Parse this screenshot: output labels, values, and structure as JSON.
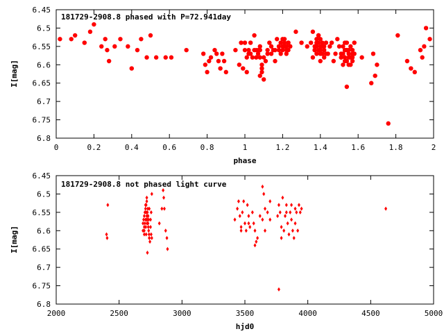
{
  "chart_data": [
    {
      "type": "scatter",
      "title": "181729-2908.8 phased with P=72.941day",
      "xlabel": "phase",
      "ylabel": "I[mag]",
      "xlim": [
        0,
        2
      ],
      "ylim": [
        6.45,
        6.8
      ],
      "y_inverted": true,
      "xticks": [
        0,
        0.2,
        0.4,
        0.6,
        0.8,
        1,
        1.2,
        1.4,
        1.6,
        1.8,
        2
      ],
      "xtick_labels": [
        "0",
        "0.2",
        "0.4",
        "0.6",
        "0.8",
        "1",
        "1.2",
        "1.4",
        "1.6",
        "1.8",
        "2"
      ],
      "yticks": [
        6.45,
        6.5,
        6.55,
        6.6,
        6.65,
        6.7,
        6.75,
        6.8
      ],
      "ytick_labels": [
        "6.45",
        "6.5",
        "6.55",
        "6.6",
        "6.65",
        "6.7",
        "6.75",
        "6.8"
      ],
      "grid": false,
      "color": "#ff0000",
      "marker": "filled-circle",
      "series": [
        {
          "x": [
            0.02,
            0.08,
            0.1,
            0.15,
            0.18,
            0.2,
            0.24,
            0.26,
            0.27,
            0.28,
            0.31,
            0.34,
            0.38,
            0.4,
            0.43,
            0.45,
            0.48,
            0.5,
            0.53,
            0.58,
            0.61,
            0.69,
            0.78,
            0.79,
            0.8,
            0.81,
            0.82,
            0.84,
            0.85,
            0.86,
            0.87,
            0.88,
            0.89,
            0.9,
            0.95,
            0.97,
            0.98,
            0.99,
            1.0,
            1.01,
            1.02,
            1.03,
            1.04,
            1.05,
            1.06,
            1.07,
            1.08,
            1.09,
            1.1,
            1.11,
            1.12,
            1.13,
            1.14,
            1.15,
            1.16,
            1.17,
            1.18,
            1.19,
            1.2,
            1.21,
            1.22,
            1.23,
            1.24,
            1.27,
            1.3,
            1.33,
            1.35,
            1.36,
            1.37,
            1.38,
            1.39,
            1.4,
            1.41,
            1.42,
            1.43,
            1.44,
            1.45,
            1.46,
            1.47,
            1.48,
            1.5,
            1.51,
            1.52,
            1.53,
            1.54,
            1.55,
            1.56,
            1.57,
            1.58,
            1.62,
            1.67,
            1.68,
            1.69,
            1.7,
            1.76,
            1.81,
            1.86,
            1.88,
            1.9,
            1.93,
            1.94,
            1.95,
            1.96,
            1.98
          ],
          "y": [
            6.53,
            6.53,
            6.52,
            6.54,
            6.51,
            6.49,
            6.55,
            6.53,
            6.56,
            6.59,
            6.55,
            6.53,
            6.55,
            6.61,
            6.56,
            6.53,
            6.58,
            6.52,
            6.58,
            6.58,
            6.58,
            6.56,
            6.57,
            6.6,
            6.62,
            6.59,
            6.58,
            6.56,
            6.57,
            6.59,
            6.61,
            6.57,
            6.59,
            6.62,
            6.56,
            6.6,
            6.54,
            6.61,
            6.54,
            6.62,
            6.57,
            6.54,
            6.58,
            6.52,
            6.56,
            6.57,
            6.55,
            6.62,
            6.64,
            6.59,
            6.57,
            6.54,
            6.55,
            6.56,
            6.59,
            6.53,
            6.55,
            6.57,
            6.53,
            6.55,
            6.56,
            6.54,
            6.55,
            6.51,
            6.54,
            6.55,
            6.54,
            6.51,
            6.56,
            6.54,
            6.52,
            6.56,
            6.55,
            6.58,
            6.54,
            6.57,
            6.55,
            6.54,
            6.59,
            6.57,
            6.55,
            6.58,
            6.6,
            6.54,
            6.66,
            6.56,
            6.58,
            6.59,
            6.54,
            6.58,
            6.65,
            6.57,
            6.63,
            6.6,
            6.76,
            6.52,
            6.59,
            6.61,
            6.62,
            6.56,
            6.58,
            6.55,
            6.5,
            6.53
          ],
          "extra_x": [
            1.38,
            1.39,
            1.39,
            1.4,
            1.4,
            1.41,
            1.37,
            1.36,
            1.42,
            1.43,
            1.38,
            1.39,
            1.41,
            1.4,
            1.37,
            1.38,
            1.42,
            1.4,
            1.52,
            1.53,
            1.54,
            1.55,
            1.56,
            1.57,
            1.53,
            1.54,
            1.52,
            1.55,
            1.56,
            1.57,
            1.49,
            1.51,
            1.53,
            1.54,
            1.55,
            1.56,
            1.58,
            1.54,
            1.57,
            1.53,
            1.51,
            1.0,
            1.01,
            1.02,
            1.03,
            1.05,
            1.06,
            1.08,
            1.1,
            1.12,
            1.14,
            1.16,
            1.2,
            1.21,
            1.22,
            1.22,
            1.23,
            1.24,
            1.2,
            1.21,
            1.23,
            1.19,
            1.18,
            1.09,
            1.09,
            1.08,
            1.08,
            1.07
          ],
          "extra_y": [
            6.53,
            6.54,
            6.56,
            6.57,
            6.55,
            6.54,
            6.55,
            6.58,
            6.56,
            6.57,
            6.55,
            6.52,
            6.57,
            6.59,
            6.56,
            6.57,
            6.55,
            6.53,
            6.57,
            6.56,
            6.59,
            6.57,
            6.55,
            6.58,
            6.58,
            6.56,
            6.55,
            6.6,
            6.58,
            6.56,
            6.53,
            6.57,
            6.56,
            6.54,
            6.58,
            6.6,
            6.57,
            6.56,
            6.57,
            6.59,
            6.58,
            6.56,
            6.58,
            6.56,
            6.57,
            6.56,
            6.58,
            6.56,
            6.58,
            6.56,
            6.57,
            6.56,
            6.56,
            6.54,
            6.55,
            6.57,
            6.54,
            6.55,
            6.55,
            6.53,
            6.56,
            6.54,
            6.56,
            6.6,
            6.61,
            6.58,
            6.63,
            6.56
          ]
        }
      ]
    },
    {
      "type": "scatter",
      "title": "181729-2908.8 not phased light curve",
      "xlabel": "hjd0",
      "ylabel": "I[mag]",
      "xlim": [
        2000,
        5000
      ],
      "ylim": [
        6.45,
        6.8
      ],
      "y_inverted": true,
      "xticks": [
        2000,
        2500,
        3000,
        3500,
        4000,
        4500,
        5000
      ],
      "xtick_labels": [
        "2000",
        "2500",
        "3000",
        "3500",
        "4000",
        "4500",
        "5000"
      ],
      "yticks": [
        6.45,
        6.5,
        6.55,
        6.6,
        6.65,
        6.7,
        6.75,
        6.8
      ],
      "ytick_labels": [
        "6.45",
        "6.5",
        "6.55",
        "6.6",
        "6.65",
        "6.7",
        "6.75",
        "6.8"
      ],
      "grid": false,
      "color": "#ff0000",
      "marker": "small-diamond",
      "series": [
        {
          "x": [
            2400,
            2405,
            2410,
            2690,
            2695,
            2700,
            2700,
            2705,
            2705,
            2710,
            2710,
            2712,
            2715,
            2715,
            2718,
            2720,
            2720,
            2722,
            2725,
            2725,
            2728,
            2730,
            2730,
            2732,
            2735,
            2735,
            2738,
            2740,
            2745,
            2750,
            2755,
            2760,
            2690,
            2700,
            2710,
            2720,
            2730,
            2740,
            2750,
            2760,
            2700,
            2715,
            2725,
            2740,
            2755,
            2820,
            2840,
            2850,
            2855,
            2860,
            2870,
            2880,
            2885,
            3420,
            3440,
            3450,
            3460,
            3470,
            3480,
            3500,
            3510,
            3520,
            3530,
            3540,
            3560,
            3570,
            3580,
            3590,
            3600,
            3620,
            3640,
            3650,
            3660,
            3680,
            3700,
            3760,
            3770,
            3780,
            3790,
            3800,
            3810,
            3820,
            3830,
            3840,
            3850,
            3860,
            3870,
            3880,
            3890,
            3900,
            3910,
            3920,
            3930,
            3940,
            3950,
            3470,
            3490,
            3530,
            3580,
            3640,
            3660,
            3700,
            3790,
            3830,
            3870,
            3900,
            4620,
            3770
          ],
          "y": [
            6.61,
            6.62,
            6.53,
            6.58,
            6.57,
            6.56,
            6.6,
            6.55,
            6.58,
            6.54,
            6.57,
            6.59,
            6.55,
            6.53,
            6.57,
            6.56,
            6.52,
            6.58,
            6.55,
            6.57,
            6.54,
            6.58,
            6.56,
            6.59,
            6.57,
            6.6,
            6.61,
            6.62,
            6.63,
            6.59,
            6.61,
            6.62,
            6.6,
            6.61,
            6.53,
            6.51,
            6.56,
            6.54,
            6.57,
            6.5,
            6.59,
            6.61,
            6.66,
            6.62,
            6.55,
            6.58,
            6.54,
            6.49,
            6.51,
            6.54,
            6.6,
            6.62,
            6.65,
            6.57,
            6.54,
            6.52,
            6.56,
            6.6,
            6.55,
            6.58,
            6.6,
            6.53,
            6.56,
            6.59,
            6.55,
            6.58,
            6.6,
            6.63,
            6.62,
            6.56,
            6.48,
            6.5,
            6.54,
            6.55,
            6.57,
            6.56,
            6.53,
            6.55,
            6.59,
            6.51,
            6.6,
            6.56,
            6.53,
            6.58,
            6.61,
            6.55,
            6.57,
            6.6,
            6.62,
            6.58,
            6.55,
            6.6,
            6.53,
            6.55,
            6.54,
            6.59,
            6.52,
            6.58,
            6.64,
            6.57,
            6.6,
            6.52,
            6.62,
            6.55,
            6.53,
            6.54,
            6.54,
            6.76
          ]
        }
      ]
    }
  ]
}
